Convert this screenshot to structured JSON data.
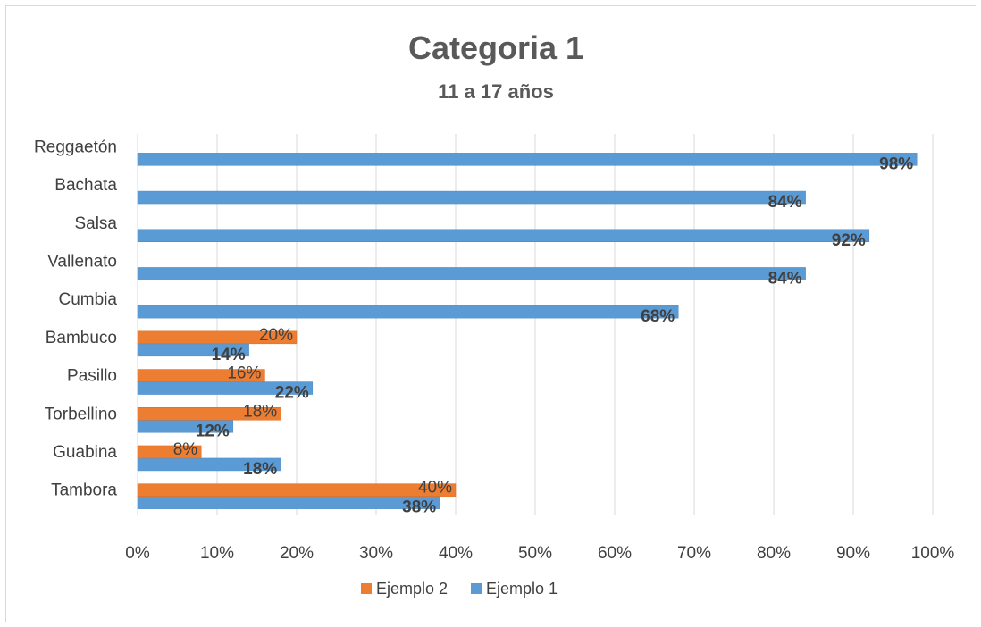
{
  "chart_data": {
    "type": "bar",
    "orientation": "horizontal",
    "title": "Categoria 1",
    "subtitle": "11 a 17 años",
    "categories": [
      "Reggaetón",
      "Bachata",
      "Salsa",
      "Vallenato",
      "Cumbia",
      "Bambuco",
      "Pasillo",
      "Torbellino",
      "Guabina",
      "Tambora"
    ],
    "series": [
      {
        "name": "Ejemplo 2",
        "color": "#ED7D31",
        "values": [
          null,
          null,
          null,
          null,
          null,
          20,
          16,
          18,
          8,
          40
        ],
        "labels": [
          "",
          "",
          "",
          "",
          "",
          "20%",
          "16%",
          "18%",
          "8%",
          "40%"
        ]
      },
      {
        "name": "Ejemplo 1",
        "color": "#5B9BD5",
        "values": [
          98,
          84,
          92,
          84,
          68,
          14,
          22,
          12,
          18,
          38
        ],
        "labels": [
          "98%",
          "84%",
          "92%",
          "84%",
          "68%",
          "14%",
          "22%",
          "12%",
          "18%",
          "38%"
        ]
      }
    ],
    "xlim": [
      0,
      100
    ],
    "x_ticks": [
      "0%",
      "10%",
      "20%",
      "30%",
      "40%",
      "50%",
      "60%",
      "70%",
      "80%",
      "90%",
      "100%"
    ],
    "grid": true,
    "legend_position": "bottom"
  }
}
